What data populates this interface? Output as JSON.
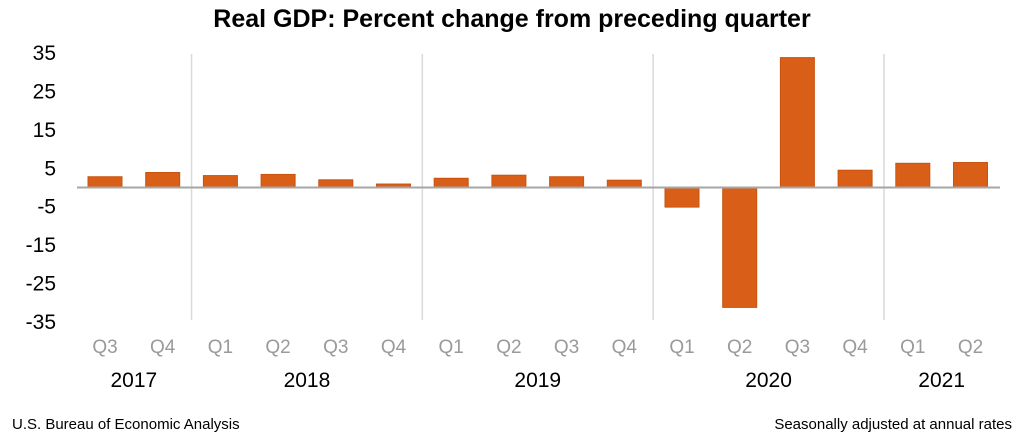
{
  "chart_data": {
    "type": "bar",
    "title": "Real GDP:  Percent change from preceding quarter",
    "categories": [
      "Q3",
      "Q4",
      "Q1",
      "Q2",
      "Q3",
      "Q4",
      "Q1",
      "Q2",
      "Q3",
      "Q4",
      "Q1",
      "Q2",
      "Q3",
      "Q4",
      "Q1",
      "Q2"
    ],
    "years": [
      {
        "label": "2017",
        "quarters": 2
      },
      {
        "label": "2018",
        "quarters": 4
      },
      {
        "label": "2019",
        "quarters": 4
      },
      {
        "label": "2020",
        "quarters": 4
      },
      {
        "label": "2021",
        "quarters": 2
      }
    ],
    "values": [
      2.8,
      3.9,
      3.1,
      3.4,
      2.0,
      0.9,
      2.4,
      3.2,
      2.8,
      1.9,
      -5.1,
      -31.2,
      33.8,
      4.5,
      6.3,
      6.5
    ],
    "yticks": [
      35,
      25,
      15,
      5,
      -5,
      -15,
      -25,
      -35
    ],
    "ylim": [
      -35,
      35
    ],
    "bar_color": "#d95f18",
    "grid": false,
    "legend": "none",
    "source": "U.S. Bureau of Economic Analysis",
    "note": "Seasonally adjusted at annual rates"
  }
}
